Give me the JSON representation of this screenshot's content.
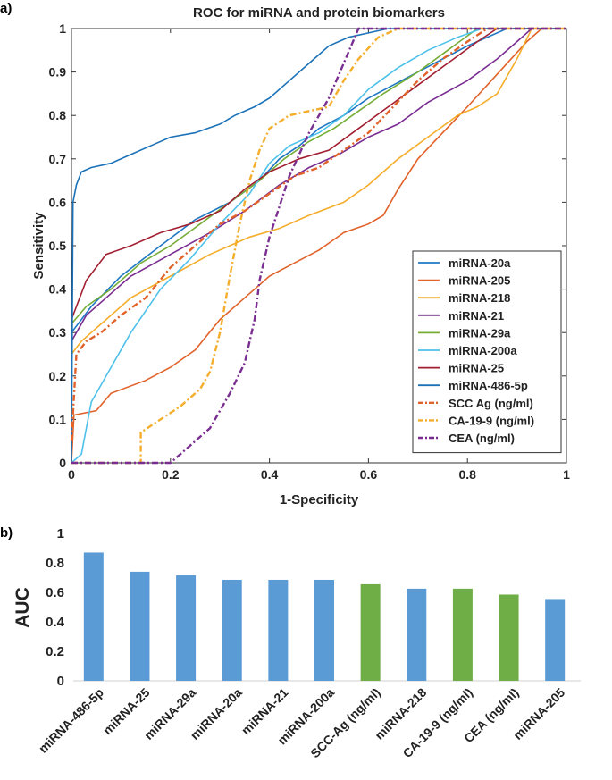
{
  "chart_data": [
    {
      "panel_label": "a)",
      "type": "line",
      "title": "ROC for miRNA and protein biomarkers",
      "xlabel": "1-Specificity",
      "ylabel": "Sensitivity",
      "xlim": [
        0,
        1
      ],
      "ylim": [
        0,
        1
      ],
      "x_ticks": [
        "0",
        "0.2",
        "0.4",
        "0.6",
        "0.8",
        "1"
      ],
      "y_ticks": [
        "0",
        "0.1",
        "0.2",
        "0.3",
        "0.4",
        "0.5",
        "0.6",
        "0.7",
        "0.8",
        "0.9",
        "1"
      ],
      "legend_position": "lower-right",
      "series": [
        {
          "name": "miRNA-20a",
          "color": "#1f77c4",
          "style": "solid",
          "points": [
            [
              0,
              0.3
            ],
            [
              0.04,
              0.36
            ],
            [
              0.1,
              0.43
            ],
            [
              0.18,
              0.5
            ],
            [
              0.25,
              0.56
            ],
            [
              0.32,
              0.6
            ],
            [
              0.38,
              0.65
            ],
            [
              0.42,
              0.7
            ],
            [
              0.46,
              0.73
            ],
            [
              0.5,
              0.77
            ],
            [
              0.55,
              0.8
            ],
            [
              0.6,
              0.84
            ],
            [
              0.7,
              0.9
            ],
            [
              0.8,
              0.96
            ],
            [
              0.88,
              1
            ],
            [
              1,
              1
            ]
          ]
        },
        {
          "name": "miRNA-205",
          "color": "#e1622a",
          "style": "solid",
          "points": [
            [
              0,
              0
            ],
            [
              0.005,
              0.11
            ],
            [
              0.05,
              0.12
            ],
            [
              0.08,
              0.16
            ],
            [
              0.15,
              0.19
            ],
            [
              0.2,
              0.22
            ],
            [
              0.25,
              0.26
            ],
            [
              0.3,
              0.33
            ],
            [
              0.35,
              0.38
            ],
            [
              0.4,
              0.43
            ],
            [
              0.45,
              0.46
            ],
            [
              0.5,
              0.49
            ],
            [
              0.55,
              0.53
            ],
            [
              0.6,
              0.55
            ],
            [
              0.63,
              0.57
            ],
            [
              0.66,
              0.63
            ],
            [
              0.7,
              0.7
            ],
            [
              0.75,
              0.76
            ],
            [
              0.8,
              0.82
            ],
            [
              0.84,
              0.87
            ],
            [
              0.88,
              0.92
            ],
            [
              0.92,
              0.97
            ],
            [
              0.95,
              1
            ],
            [
              1,
              1
            ]
          ]
        },
        {
          "name": "miRNA-218",
          "color": "#f5ad2c",
          "style": "solid",
          "points": [
            [
              0,
              0.25
            ],
            [
              0.02,
              0.28
            ],
            [
              0.07,
              0.33
            ],
            [
              0.12,
              0.38
            ],
            [
              0.2,
              0.43
            ],
            [
              0.28,
              0.48
            ],
            [
              0.36,
              0.52
            ],
            [
              0.42,
              0.54
            ],
            [
              0.48,
              0.57
            ],
            [
              0.55,
              0.6
            ],
            [
              0.6,
              0.64
            ],
            [
              0.66,
              0.7
            ],
            [
              0.72,
              0.75
            ],
            [
              0.78,
              0.8
            ],
            [
              0.82,
              0.82
            ],
            [
              0.86,
              0.85
            ],
            [
              0.9,
              0.93
            ],
            [
              0.93,
              1
            ],
            [
              1,
              1
            ]
          ]
        },
        {
          "name": "miRNA-21",
          "color": "#7a2e91",
          "style": "solid",
          "points": [
            [
              0,
              0.28
            ],
            [
              0.03,
              0.34
            ],
            [
              0.07,
              0.38
            ],
            [
              0.12,
              0.43
            ],
            [
              0.2,
              0.48
            ],
            [
              0.28,
              0.53
            ],
            [
              0.35,
              0.58
            ],
            [
              0.42,
              0.64
            ],
            [
              0.48,
              0.68
            ],
            [
              0.54,
              0.71
            ],
            [
              0.6,
              0.75
            ],
            [
              0.66,
              0.78
            ],
            [
              0.72,
              0.83
            ],
            [
              0.8,
              0.88
            ],
            [
              0.86,
              0.93
            ],
            [
              0.9,
              0.97
            ],
            [
              0.93,
              1
            ],
            [
              1,
              1
            ]
          ]
        },
        {
          "name": "miRNA-29a",
          "color": "#76ad37",
          "style": "solid",
          "points": [
            [
              0,
              0.32
            ],
            [
              0.03,
              0.36
            ],
            [
              0.08,
              0.4
            ],
            [
              0.14,
              0.46
            ],
            [
              0.2,
              0.5
            ],
            [
              0.26,
              0.55
            ],
            [
              0.32,
              0.6
            ],
            [
              0.38,
              0.65
            ],
            [
              0.43,
              0.7
            ],
            [
              0.48,
              0.74
            ],
            [
              0.53,
              0.77
            ],
            [
              0.58,
              0.81
            ],
            [
              0.63,
              0.85
            ],
            [
              0.7,
              0.9
            ],
            [
              0.76,
              0.95
            ],
            [
              0.82,
              1
            ],
            [
              1,
              1
            ]
          ]
        },
        {
          "name": "miRNA-200a",
          "color": "#4ec1ea",
          "style": "solid",
          "points": [
            [
              0,
              0
            ],
            [
              0.02,
              0.02
            ],
            [
              0.04,
              0.14
            ],
            [
              0.08,
              0.22
            ],
            [
              0.12,
              0.3
            ],
            [
              0.18,
              0.4
            ],
            [
              0.24,
              0.47
            ],
            [
              0.3,
              0.55
            ],
            [
              0.36,
              0.62
            ],
            [
              0.4,
              0.69
            ],
            [
              0.44,
              0.73
            ],
            [
              0.5,
              0.76
            ],
            [
              0.55,
              0.8
            ],
            [
              0.6,
              0.86
            ],
            [
              0.66,
              0.91
            ],
            [
              0.72,
              0.95
            ],
            [
              0.78,
              0.98
            ],
            [
              0.83,
              1
            ],
            [
              1,
              1
            ]
          ]
        },
        {
          "name": "miRNA-25",
          "color": "#a21f31",
          "style": "solid",
          "points": [
            [
              0,
              0.33
            ],
            [
              0.03,
              0.42
            ],
            [
              0.07,
              0.48
            ],
            [
              0.12,
              0.5
            ],
            [
              0.18,
              0.53
            ],
            [
              0.24,
              0.55
            ],
            [
              0.3,
              0.58
            ],
            [
              0.35,
              0.63
            ],
            [
              0.4,
              0.67
            ],
            [
              0.46,
              0.7
            ],
            [
              0.52,
              0.72
            ],
            [
              0.58,
              0.77
            ],
            [
              0.64,
              0.82
            ],
            [
              0.7,
              0.87
            ],
            [
              0.76,
              0.92
            ],
            [
              0.82,
              0.97
            ],
            [
              0.86,
              1
            ],
            [
              1,
              1
            ]
          ]
        },
        {
          "name": "miRNA-486-5p",
          "color": "#1b72b8",
          "style": "solid",
          "points": [
            [
              0,
              0
            ],
            [
              0.003,
              0.6
            ],
            [
              0.01,
              0.64
            ],
            [
              0.02,
              0.67
            ],
            [
              0.04,
              0.68
            ],
            [
              0.08,
              0.69
            ],
            [
              0.12,
              0.71
            ],
            [
              0.16,
              0.73
            ],
            [
              0.2,
              0.75
            ],
            [
              0.25,
              0.76
            ],
            [
              0.3,
              0.78
            ],
            [
              0.33,
              0.8
            ],
            [
              0.37,
              0.82
            ],
            [
              0.4,
              0.84
            ],
            [
              0.44,
              0.88
            ],
            [
              0.48,
              0.92
            ],
            [
              0.52,
              0.96
            ],
            [
              0.56,
              0.98
            ],
            [
              0.6,
              0.99
            ],
            [
              0.64,
              1
            ],
            [
              1,
              1
            ]
          ]
        },
        {
          "name": "SCC Ag (ng/ml)",
          "color": "#e1622a",
          "style": "dashdot",
          "points": [
            [
              0,
              0.05
            ],
            [
              0.01,
              0.25
            ],
            [
              0.03,
              0.28
            ],
            [
              0.06,
              0.3
            ],
            [
              0.1,
              0.34
            ],
            [
              0.15,
              0.38
            ],
            [
              0.2,
              0.45
            ],
            [
              0.25,
              0.5
            ],
            [
              0.3,
              0.55
            ],
            [
              0.35,
              0.58
            ],
            [
              0.4,
              0.62
            ],
            [
              0.45,
              0.66
            ],
            [
              0.5,
              0.68
            ],
            [
              0.55,
              0.72
            ],
            [
              0.6,
              0.76
            ],
            [
              0.65,
              0.82
            ],
            [
              0.7,
              0.88
            ],
            [
              0.75,
              0.93
            ],
            [
              0.8,
              0.97
            ],
            [
              0.84,
              1
            ],
            [
              1,
              1
            ]
          ]
        },
        {
          "name": "CA-19-9 (ng/ml)",
          "color": "#f5ad2c",
          "style": "dashdot",
          "points": [
            [
              0,
              0
            ],
            [
              0.14,
              0
            ],
            [
              0.14,
              0.07
            ],
            [
              0.18,
              0.1
            ],
            [
              0.22,
              0.13
            ],
            [
              0.26,
              0.17
            ],
            [
              0.28,
              0.21
            ],
            [
              0.3,
              0.3
            ],
            [
              0.32,
              0.43
            ],
            [
              0.34,
              0.55
            ],
            [
              0.36,
              0.65
            ],
            [
              0.38,
              0.72
            ],
            [
              0.4,
              0.77
            ],
            [
              0.44,
              0.8
            ],
            [
              0.48,
              0.81
            ],
            [
              0.52,
              0.82
            ],
            [
              0.55,
              0.88
            ],
            [
              0.58,
              0.93
            ],
            [
              0.62,
              0.98
            ],
            [
              0.66,
              1
            ],
            [
              1,
              1
            ]
          ]
        },
        {
          "name": "CEA (ng/ml)",
          "color": "#7a2e91",
          "style": "dashdot",
          "points": [
            [
              0,
              0
            ],
            [
              0.2,
              0
            ],
            [
              0.22,
              0.02
            ],
            [
              0.28,
              0.08
            ],
            [
              0.32,
              0.16
            ],
            [
              0.35,
              0.23
            ],
            [
              0.37,
              0.33
            ],
            [
              0.38,
              0.42
            ],
            [
              0.4,
              0.52
            ],
            [
              0.44,
              0.66
            ],
            [
              0.48,
              0.76
            ],
            [
              0.52,
              0.84
            ],
            [
              0.55,
              0.92
            ],
            [
              0.58,
              1
            ],
            [
              1,
              1
            ]
          ]
        }
      ]
    },
    {
      "panel_label": "b)",
      "type": "bar",
      "ylabel": "AUC",
      "ylim": [
        0,
        1
      ],
      "y_ticks": [
        "0",
        "0.2",
        "0.4",
        "0.6",
        "0.8",
        "1"
      ],
      "categories": [
        "miRNA-486-5p",
        "miRNA-25",
        "miRNA-29a",
        "miRNA-20a",
        "miRNA-21",
        "miRNA-200a",
        "SCC-Ag (ng/ml)",
        "miRNA-218",
        "CA-19-9 (ng/ml)",
        "CEA (ng/ml)",
        "miRNA-205"
      ],
      "values": [
        0.87,
        0.74,
        0.715,
        0.685,
        0.685,
        0.685,
        0.655,
        0.625,
        0.625,
        0.585,
        0.555
      ],
      "bar_colors": [
        "#5a9bd5",
        "#5a9bd5",
        "#5a9bd5",
        "#5a9bd5",
        "#5a9bd5",
        "#5a9bd5",
        "#6fad46",
        "#5a9bd5",
        "#6fad46",
        "#6fad46",
        "#5a9bd5"
      ]
    }
  ]
}
